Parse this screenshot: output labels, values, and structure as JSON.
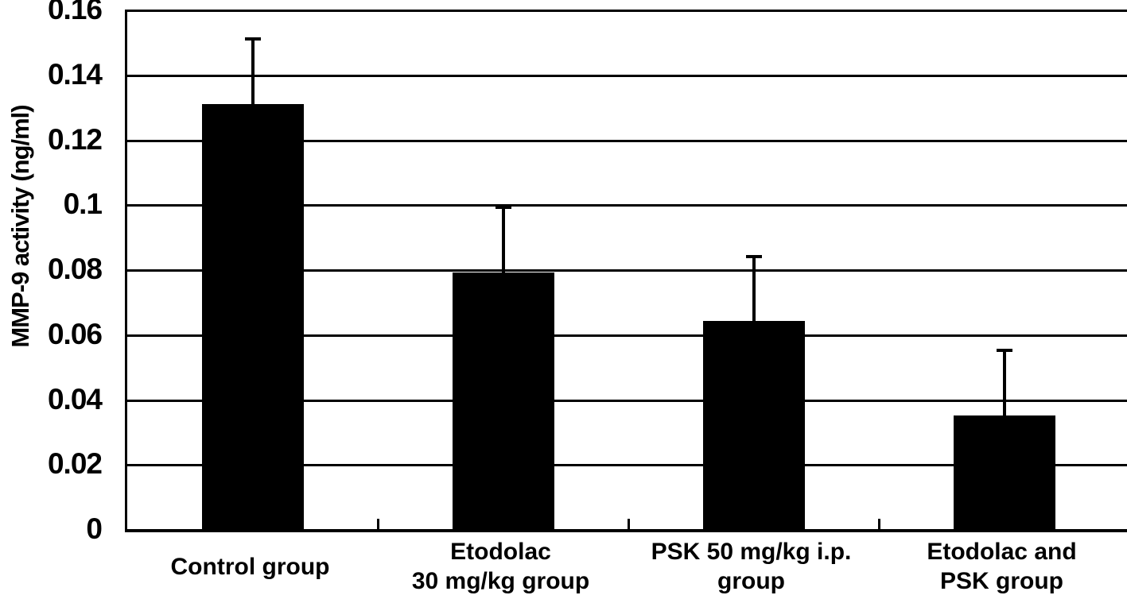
{
  "chart_data": {
    "type": "bar",
    "title": "",
    "ylabel": "MMP-9 activity (ng/ml)",
    "xlabel": "",
    "ylim": [
      0,
      0.16
    ],
    "ytick_interval": 0.02,
    "ytick_labels": [
      "0",
      "0.02",
      "0.04",
      "0.06",
      "0.08",
      "0.1",
      "0.12",
      "0.14",
      "0.16"
    ],
    "grid": true,
    "legend": false,
    "bar_color": "#000000",
    "error_bar_color": "#000000",
    "background_color": "#ffffff",
    "categories": [
      [
        "Control group"
      ],
      [
        "Etodolac",
        "30 mg/kg group"
      ],
      [
        "PSK 50 mg/kg i.p.",
        "group"
      ],
      [
        "Etodolac and",
        "PSK group"
      ]
    ],
    "values": [
      0.131,
      0.079,
      0.064,
      0.035
    ],
    "errors_plus": [
      0.02,
      0.02,
      0.02,
      0.02
    ],
    "error_tops": [
      0.151,
      0.099,
      0.084,
      0.055
    ]
  }
}
